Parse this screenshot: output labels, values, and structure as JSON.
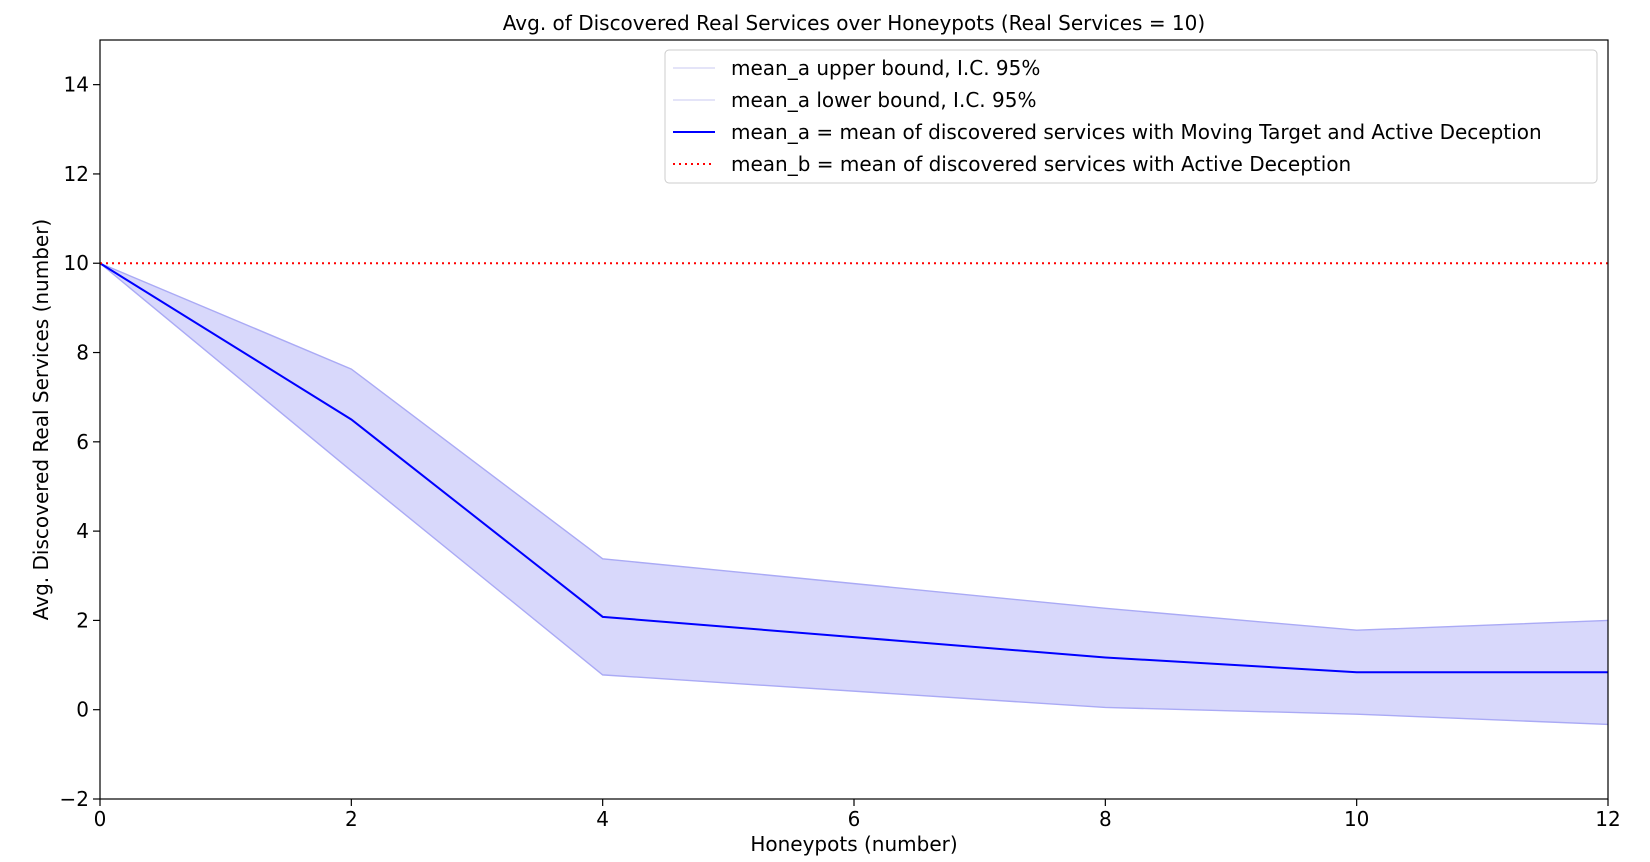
{
  "chart_data": {
    "type": "line",
    "title": "Avg. of Discovered Real Services over Honeypots (Real Services = 10)",
    "xlabel": "Honeypots (number)",
    "ylabel": "Avg. Discovered Real Services (number)",
    "xlim": [
      0,
      12
    ],
    "ylim": [
      -2,
      15
    ],
    "x_ticks": [
      "0",
      "2",
      "4",
      "6",
      "8",
      "10",
      "12"
    ],
    "y_ticks": [
      "−2",
      "0",
      "2",
      "4",
      "6",
      "8",
      "10",
      "12",
      "14"
    ],
    "grid": false,
    "legend_position": "top-right",
    "x": [
      0,
      2,
      4,
      8,
      10,
      12
    ],
    "series": [
      {
        "name": "mean_a upper bound, I.C. 95%",
        "style": "line",
        "color": "#aaaaf5",
        "values": [
          10,
          7.63,
          3.38,
          2.27,
          1.78,
          2.0
        ]
      },
      {
        "name": "mean_a lower bound, I.C. 95%",
        "style": "line",
        "color": "#aaaaf5",
        "values": [
          10,
          5.35,
          0.78,
          0.05,
          -0.1,
          -0.33
        ]
      },
      {
        "name": "mean_a = mean of discovered services with Moving Target and Active Deception",
        "style": "line",
        "color": "#0000ff",
        "values": [
          10,
          6.5,
          2.08,
          1.17,
          0.84,
          0.84
        ]
      },
      {
        "name": "mean_b = mean of discovered services with Active Deception",
        "style": "dotted",
        "color": "#ff0000",
        "values": [
          10,
          10,
          10,
          10,
          10,
          10
        ]
      }
    ],
    "band_fill_color": "#d8d8fb"
  }
}
